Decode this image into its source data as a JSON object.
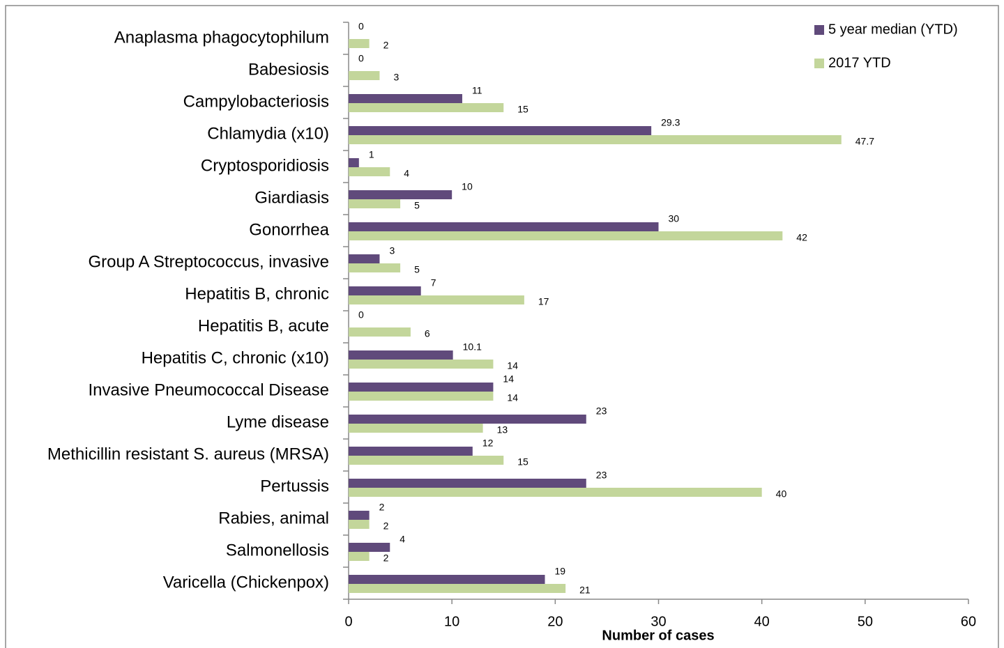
{
  "chart_data": {
    "type": "bar",
    "orientation": "horizontal",
    "x_label": "Number of cases",
    "categories": [
      "Anaplasma phagocytophilum",
      "Babesiosis",
      "Campylobacteriosis",
      "Chlamydia (x10)",
      "Cryptosporidiosis",
      "Giardiasis",
      "Gonorrhea",
      "Group A Streptococcus, invasive",
      "Hepatitis B, chronic",
      "Hepatitis B, acute",
      "Hepatitis C, chronic (x10)",
      "Invasive Pneumococcal Disease",
      "Lyme disease",
      "Methicillin resistant S. aureus (MRSA)",
      "Pertussis",
      "Rabies, animal",
      "Salmonellosis",
      "Varicella (Chickenpox)"
    ],
    "series": [
      {
        "name": "5 year median (YTD)",
        "color": "#604a7b",
        "values": [
          0,
          0,
          11,
          29.3,
          1,
          10,
          30,
          3,
          7,
          0,
          10.1,
          14,
          23,
          12,
          23,
          2,
          4,
          19
        ]
      },
      {
        "name": "2017 YTD",
        "color": "#c3d69b",
        "values": [
          2,
          3,
          15,
          47.7,
          4,
          5,
          42,
          5,
          17,
          6,
          14,
          14,
          13,
          15,
          40,
          2,
          2,
          21
        ]
      }
    ],
    "xlim": [
      0,
      60
    ],
    "xticks": [
      0,
      10,
      20,
      30,
      40,
      50,
      60
    ],
    "legend": "top-right"
  }
}
